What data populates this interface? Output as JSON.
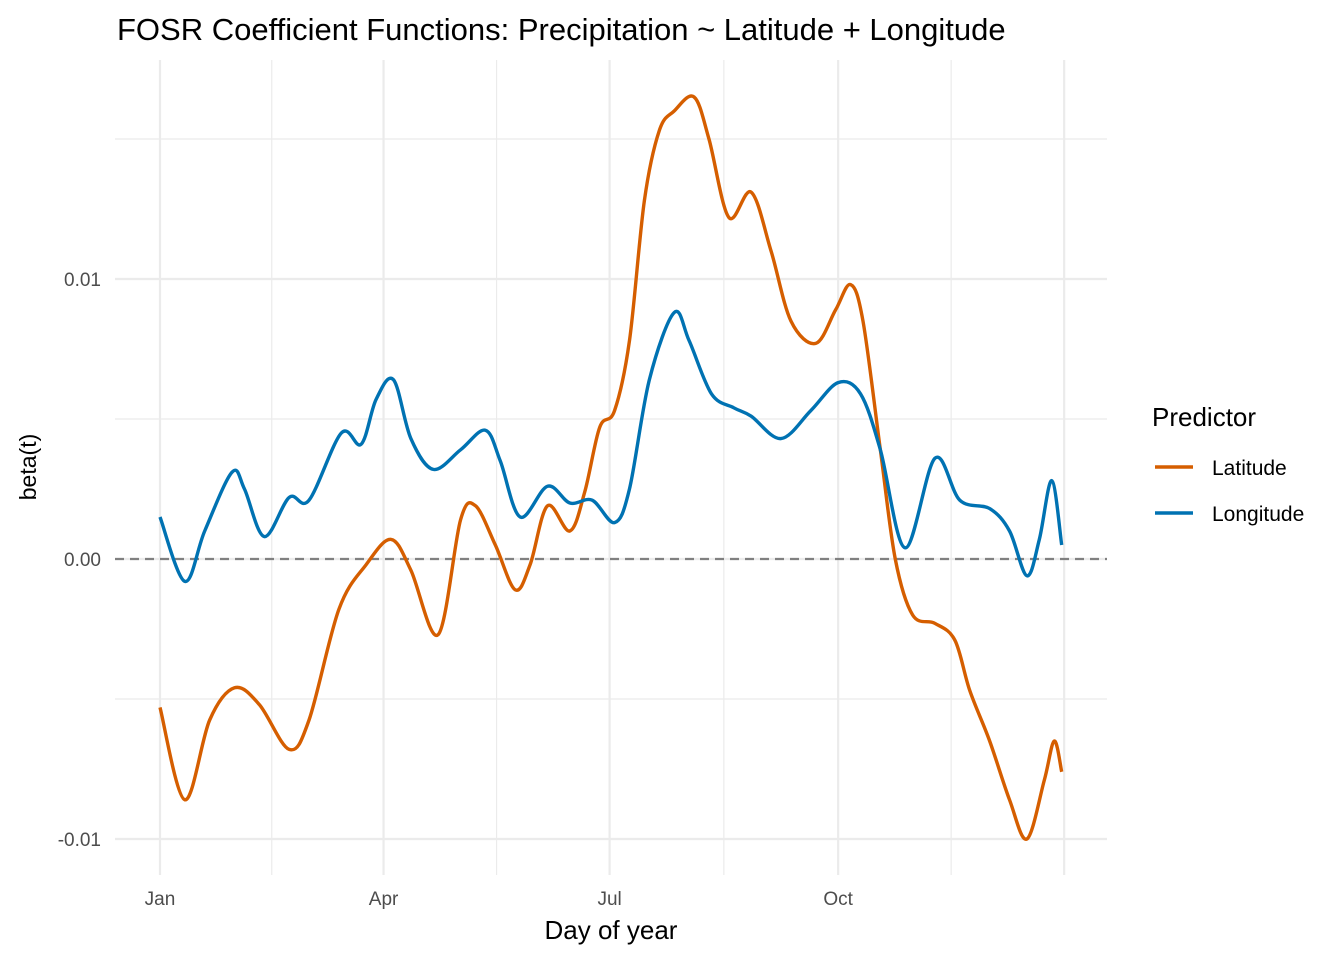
{
  "chart_data": {
    "type": "line",
    "title": "FOSR Coefficient Functions: Precipitation ~ Latitude + Longitude",
    "xlabel": "Day of year",
    "ylabel": "beta(t)",
    "xlim": [
      1,
      365
    ],
    "ylim": [
      -0.0112,
      0.0179
    ],
    "x_ticks": [
      {
        "day": 1,
        "label": "Jan"
      },
      {
        "day": 91,
        "label": "Apr"
      },
      {
        "day": 182,
        "label": "Jul"
      },
      {
        "day": 274,
        "label": "Oct"
      }
    ],
    "y_ticks": [
      {
        "value": 0.01,
        "label": "0.01"
      },
      {
        "value": 0.0,
        "label": "0.00"
      },
      {
        "value": -0.01,
        "label": "-0.01"
      }
    ],
    "reference_line": {
      "value": 0,
      "style": "dashed",
      "color": "#808080"
    },
    "grid": true,
    "legend": {
      "title": "Predictor",
      "position": "right"
    },
    "series": [
      {
        "name": "Latitude",
        "color": "#D55E00",
        "x": [
          1,
          11,
          21,
          31,
          41,
          53,
          61,
          73,
          84,
          94,
          102,
          113,
          122,
          128,
          136,
          144,
          150,
          157,
          166,
          172,
          178,
          184,
          190,
          196,
          202,
          208,
          216,
          222,
          230,
          239,
          247,
          255,
          265,
          273,
          279,
          284,
          291,
          297,
          304,
          313,
          321,
          327,
          335,
          343,
          350,
          357,
          361,
          364
        ],
        "y": [
          -0.0053,
          -0.0086,
          -0.00575,
          -0.0046,
          -0.0052,
          -0.0068,
          -0.00575,
          -0.0018,
          -0.0002,
          0.0007,
          -0.0004,
          -0.0027,
          0.0014,
          0.0019,
          0.0005,
          -0.0011,
          -0.0002,
          0.0019,
          0.001,
          0.0024,
          0.0047,
          0.0053,
          0.0078,
          0.0128,
          0.0153,
          0.016,
          0.0165,
          0.015,
          0.0122,
          0.0131,
          0.011,
          0.0085,
          0.0077,
          0.0089,
          0.0098,
          0.0085,
          0.0039,
          0.0,
          -0.002,
          -0.0023,
          -0.0029,
          -0.0047,
          -0.0065,
          -0.0086,
          -0.01,
          -0.0079,
          -0.0065,
          -0.0076
        ]
      },
      {
        "name": "Longitude",
        "color": "#0072B2",
        "x": [
          1,
          11,
          19,
          30,
          35,
          43,
          53,
          61,
          74,
          82,
          88,
          95,
          102,
          111,
          122,
          132,
          138,
          146,
          157,
          166,
          175,
          184,
          190,
          198,
          208,
          214,
          223,
          232,
          239,
          251,
          263,
          274,
          283,
          291,
          301,
          313,
          323,
          335,
          343,
          350,
          355,
          360,
          364
        ],
        "y": [
          0.0015,
          -0.0008,
          0.001,
          0.0031,
          0.0025,
          0.0008,
          0.0022,
          0.0021,
          0.0045,
          0.0041,
          0.0057,
          0.0064,
          0.0043,
          0.0032,
          0.0039,
          0.0046,
          0.0035,
          0.0015,
          0.0026,
          0.002,
          0.0021,
          0.0013,
          0.0025,
          0.0064,
          0.0088,
          0.0078,
          0.0059,
          0.0054,
          0.0051,
          0.0043,
          0.0053,
          0.0063,
          0.0059,
          0.0039,
          0.0004,
          0.0036,
          0.0021,
          0.0018,
          0.001,
          -0.0006,
          0.0007,
          0.0028,
          0.0005
        ]
      }
    ]
  }
}
